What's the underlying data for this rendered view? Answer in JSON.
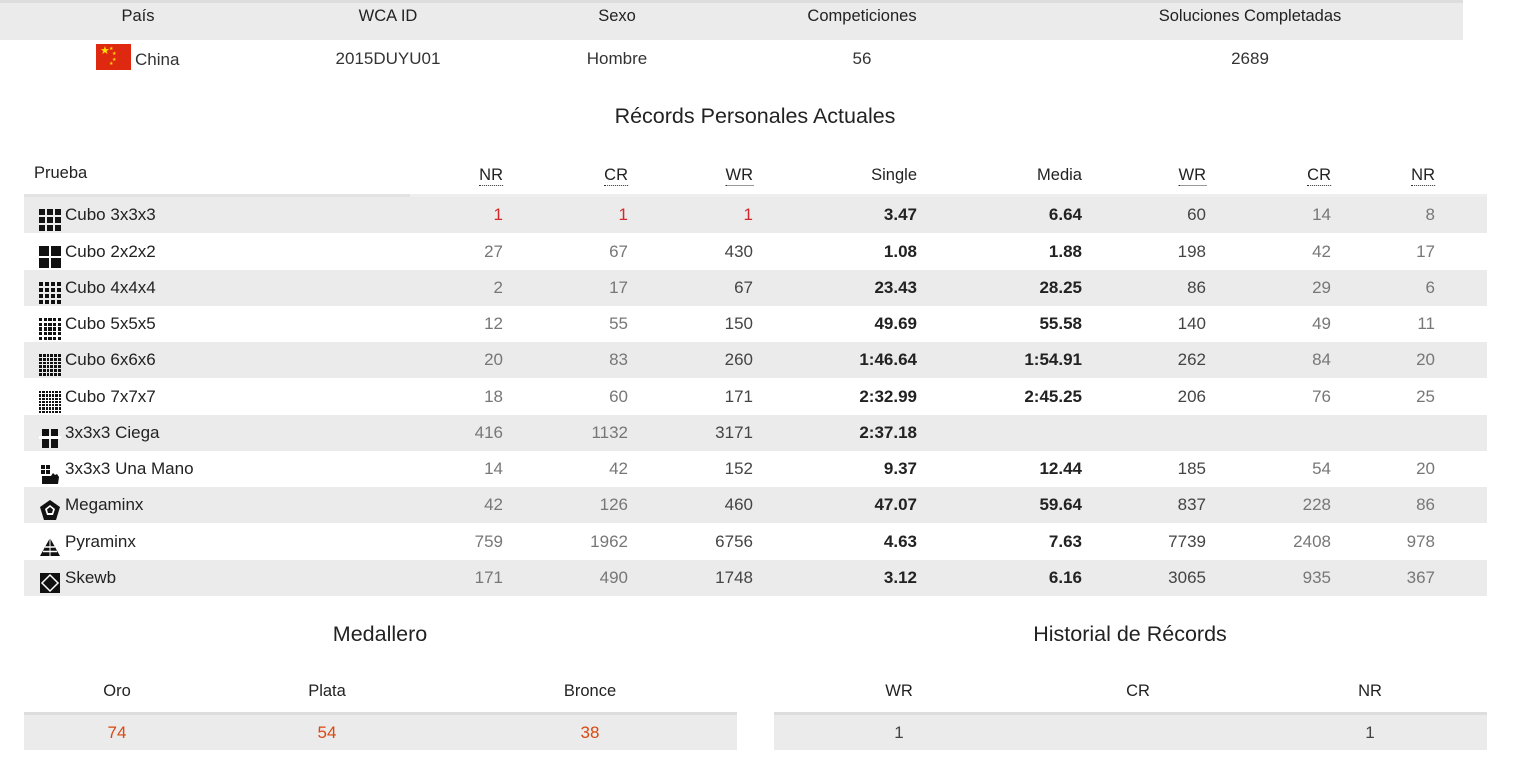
{
  "profile": {
    "headers": {
      "country": "País",
      "wca_id": "WCA ID",
      "gender": "Sexo",
      "competitions": "Competiciones",
      "solves": "Soluciones Completadas"
    },
    "values": {
      "country": "China",
      "wca_id": "2015DUYU01",
      "gender": "Hombre",
      "competitions": "56",
      "solves": "2689"
    },
    "flag_colors": {
      "field": "#de2910",
      "star": "#ffde00"
    }
  },
  "records": {
    "title": "Récords Personales Actuales",
    "headers": {
      "event": "Prueba",
      "nr_single": "NR",
      "cr_single": "CR",
      "wr_single": "WR",
      "single": "Single",
      "average": "Media",
      "wr_average": "WR",
      "cr_average": "CR",
      "nr_average": "NR"
    },
    "rows": [
      {
        "icon": "cube-3x3-icon",
        "event": "Cubo 3x3x3",
        "nr_single": "1",
        "cr_single": "1",
        "wr_single": "1",
        "single": "3.47",
        "average": "6.64",
        "wr_average": "60",
        "cr_average": "14",
        "nr_average": "8"
      },
      {
        "icon": "cube-2x2-icon",
        "event": "Cubo 2x2x2",
        "nr_single": "27",
        "cr_single": "67",
        "wr_single": "430",
        "single": "1.08",
        "average": "1.88",
        "wr_average": "198",
        "cr_average": "42",
        "nr_average": "17"
      },
      {
        "icon": "cube-4x4-icon",
        "event": "Cubo 4x4x4",
        "nr_single": "2",
        "cr_single": "17",
        "wr_single": "67",
        "single": "23.43",
        "average": "28.25",
        "wr_average": "86",
        "cr_average": "29",
        "nr_average": "6"
      },
      {
        "icon": "cube-5x5-icon",
        "event": "Cubo 5x5x5",
        "nr_single": "12",
        "cr_single": "55",
        "wr_single": "150",
        "single": "49.69",
        "average": "55.58",
        "wr_average": "140",
        "cr_average": "49",
        "nr_average": "11"
      },
      {
        "icon": "cube-6x6-icon",
        "event": "Cubo 6x6x6",
        "nr_single": "20",
        "cr_single": "83",
        "wr_single": "260",
        "single": "1:46.64",
        "average": "1:54.91",
        "wr_average": "262",
        "cr_average": "84",
        "nr_average": "20"
      },
      {
        "icon": "cube-7x7-icon",
        "event": "Cubo 7x7x7",
        "nr_single": "18",
        "cr_single": "60",
        "wr_single": "171",
        "single": "2:32.99",
        "average": "2:45.25",
        "wr_average": "206",
        "cr_average": "76",
        "nr_average": "25"
      },
      {
        "icon": "blindfolded-icon",
        "event": "3x3x3 Ciega",
        "nr_single": "416",
        "cr_single": "1132",
        "wr_single": "3171",
        "single": "2:37.18",
        "average": "",
        "wr_average": "",
        "cr_average": "",
        "nr_average": ""
      },
      {
        "icon": "one-handed-icon",
        "event": "3x3x3 Una Mano",
        "nr_single": "14",
        "cr_single": "42",
        "wr_single": "152",
        "single": "9.37",
        "average": "12.44",
        "wr_average": "185",
        "cr_average": "54",
        "nr_average": "20"
      },
      {
        "icon": "megaminx-icon",
        "event": "Megaminx",
        "nr_single": "42",
        "cr_single": "126",
        "wr_single": "460",
        "single": "47.07",
        "average": "59.64",
        "wr_average": "837",
        "cr_average": "228",
        "nr_average": "86"
      },
      {
        "icon": "pyraminx-icon",
        "event": "Pyraminx",
        "nr_single": "759",
        "cr_single": "1962",
        "wr_single": "6756",
        "single": "4.63",
        "average": "7.63",
        "wr_average": "7739",
        "cr_average": "2408",
        "nr_average": "978"
      },
      {
        "icon": "skewb-icon",
        "event": "Skewb",
        "nr_single": "171",
        "cr_single": "490",
        "wr_single": "1748",
        "single": "3.12",
        "average": "6.16",
        "wr_average": "3065",
        "cr_average": "935",
        "nr_average": "367"
      }
    ]
  },
  "medals": {
    "title": "Medallero",
    "headers": {
      "gold": "Oro",
      "silver": "Plata",
      "bronze": "Bronce"
    },
    "values": {
      "gold": "74",
      "silver": "54",
      "bronze": "38"
    },
    "value_color": "#d9480f"
  },
  "record_history": {
    "title": "Historial de Récords",
    "headers": {
      "wr": "WR",
      "cr": "CR",
      "nr": "NR"
    },
    "values": {
      "wr": "1",
      "cr": "",
      "nr": "1"
    }
  }
}
